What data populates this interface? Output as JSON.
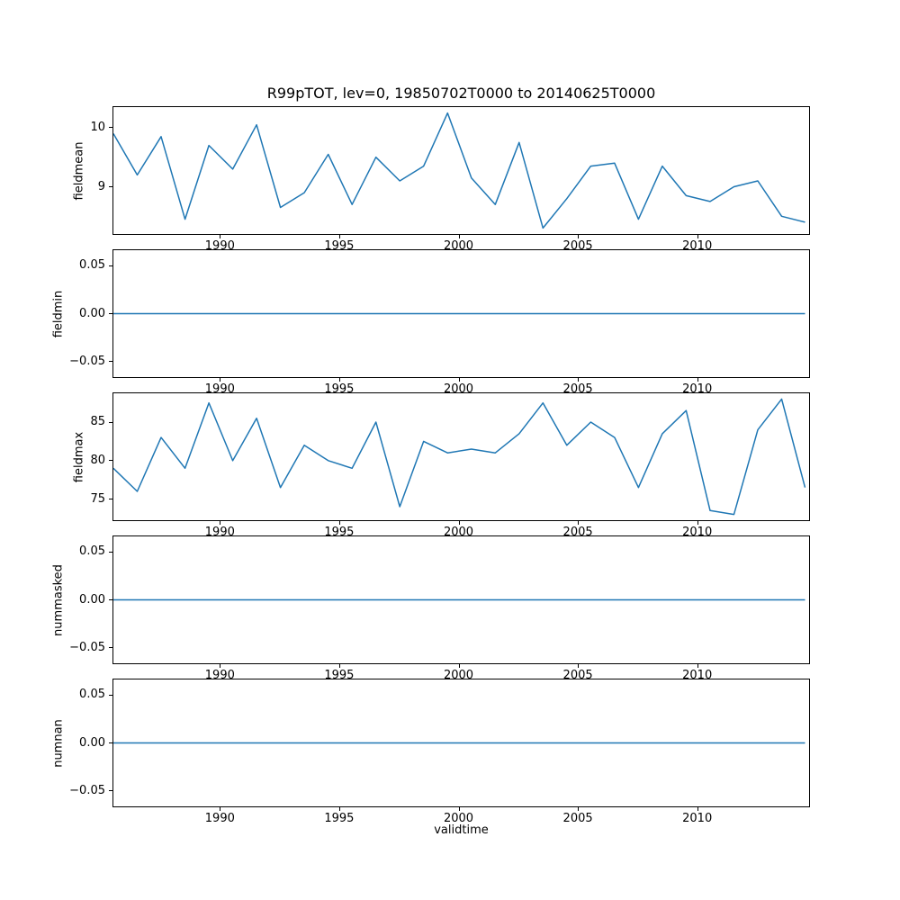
{
  "figure": {
    "title": "R99pTOT, lev=0, 19850702T0000 to 20140625T0000",
    "xlabel": "validtime",
    "line_color": "#1f77b4",
    "spine_color": "#000000"
  },
  "x_axis": {
    "xlim": [
      1985.5,
      2014.65
    ],
    "xticks": [
      {
        "v": 1990,
        "label": "1990"
      },
      {
        "v": 1995,
        "label": "1995"
      },
      {
        "v": 2000,
        "label": "2000"
      },
      {
        "v": 2005,
        "label": "2005"
      },
      {
        "v": 2010,
        "label": "2010"
      }
    ]
  },
  "x": [
    1985.5,
    1986.5,
    1987.5,
    1988.5,
    1989.5,
    1990.5,
    1991.5,
    1992.5,
    1993.5,
    1994.5,
    1995.5,
    1996.5,
    1997.5,
    1998.5,
    1999.5,
    2000.5,
    2001.5,
    2002.5,
    2003.5,
    2004.5,
    2005.5,
    2006.5,
    2007.5,
    2008.5,
    2009.5,
    2010.5,
    2011.5,
    2012.5,
    2013.5,
    2014.48
  ],
  "chart_data": [
    {
      "type": "line",
      "name": "fieldmean",
      "ylabel": "fieldmean",
      "ylim": [
        8.2,
        10.35
      ],
      "yticks": [
        {
          "v": 9,
          "label": "9"
        },
        {
          "v": 10,
          "label": "10"
        }
      ],
      "y": [
        9.9,
        9.2,
        9.85,
        8.45,
        9.7,
        9.3,
        10.05,
        8.65,
        8.9,
        9.55,
        8.7,
        9.5,
        9.1,
        9.35,
        10.25,
        9.15,
        8.7,
        9.75,
        8.3,
        8.8,
        9.35,
        9.4,
        8.45,
        9.35,
        8.85,
        8.75,
        9.0,
        9.1,
        8.5,
        8.4
      ]
    },
    {
      "type": "line",
      "name": "fieldmin",
      "ylabel": "fieldmin",
      "ylim": [
        -0.066,
        0.066
      ],
      "yticks": [
        {
          "v": -0.05,
          "label": "−0.05"
        },
        {
          "v": 0,
          "label": "0.00"
        },
        {
          "v": 0.05,
          "label": "0.05"
        }
      ],
      "y": [
        0,
        0,
        0,
        0,
        0,
        0,
        0,
        0,
        0,
        0,
        0,
        0,
        0,
        0,
        0,
        0,
        0,
        0,
        0,
        0,
        0,
        0,
        0,
        0,
        0,
        0,
        0,
        0,
        0,
        0
      ]
    },
    {
      "type": "line",
      "name": "fieldmax",
      "ylabel": "fieldmax",
      "ylim": [
        72.25,
        88.75
      ],
      "yticks": [
        {
          "v": 75,
          "label": "75"
        },
        {
          "v": 80,
          "label": "80"
        },
        {
          "v": 85,
          "label": "85"
        }
      ],
      "y": [
        79,
        76,
        83,
        79,
        87.5,
        80,
        85.5,
        76.5,
        82,
        80,
        79,
        85,
        74,
        82.5,
        81,
        81.5,
        81,
        83.5,
        87.5,
        82,
        85,
        83,
        76.5,
        83.5,
        86.5,
        73.5,
        73,
        84,
        88,
        76.5
      ]
    },
    {
      "type": "line",
      "name": "nummasked",
      "ylabel": "nummasked",
      "ylim": [
        -0.066,
        0.066
      ],
      "yticks": [
        {
          "v": -0.05,
          "label": "−0.05"
        },
        {
          "v": 0,
          "label": "0.00"
        },
        {
          "v": 0.05,
          "label": "0.05"
        }
      ],
      "y": [
        0,
        0,
        0,
        0,
        0,
        0,
        0,
        0,
        0,
        0,
        0,
        0,
        0,
        0,
        0,
        0,
        0,
        0,
        0,
        0,
        0,
        0,
        0,
        0,
        0,
        0,
        0,
        0,
        0,
        0
      ]
    },
    {
      "type": "line",
      "name": "numnan",
      "ylabel": "numnan",
      "ylim": [
        -0.066,
        0.066
      ],
      "yticks": [
        {
          "v": -0.05,
          "label": "−0.05"
        },
        {
          "v": 0,
          "label": "0.00"
        },
        {
          "v": 0.05,
          "label": "0.05"
        }
      ],
      "y": [
        0,
        0,
        0,
        0,
        0,
        0,
        0,
        0,
        0,
        0,
        0,
        0,
        0,
        0,
        0,
        0,
        0,
        0,
        0,
        0,
        0,
        0,
        0,
        0,
        0,
        0,
        0,
        0,
        0,
        0
      ]
    }
  ]
}
